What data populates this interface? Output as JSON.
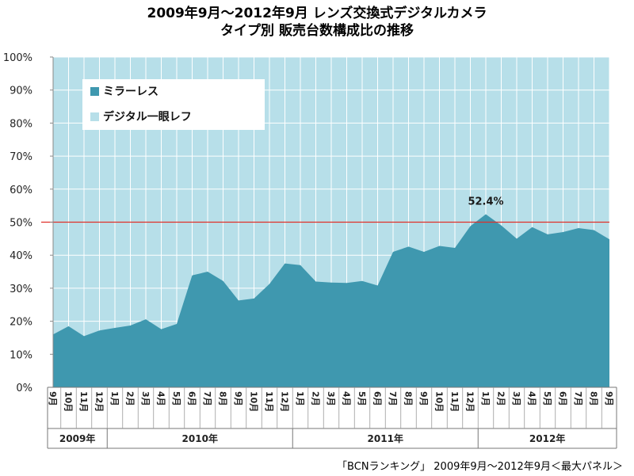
{
  "title_line1": "2009年9月～2012年9月 レンズ交換式デジタルカメラ",
  "title_line2": "タイプ別 販売台数構成比の推移",
  "source_note": "「BCNランキング」 2009年9月～2012年9月＜最大パネル＞",
  "colors": {
    "background": "#b7dfe9",
    "mirrorless": "#3f98af",
    "reference_line": "#e0302a",
    "grid": "#ffffff"
  },
  "chart_data": {
    "type": "area",
    "stacked": true,
    "percent": true,
    "ylim": [
      0,
      100
    ],
    "y_ticks": [
      "0%",
      "10%",
      "20%",
      "30%",
      "40%",
      "50%",
      "60%",
      "70%",
      "80%",
      "90%",
      "100%"
    ],
    "categories": [
      "9月",
      "10月",
      "11月",
      "12月",
      "1月",
      "2月",
      "3月",
      "4月",
      "5月",
      "6月",
      "7月",
      "8月",
      "9月",
      "10月",
      "11月",
      "12月",
      "1月",
      "2月",
      "3月",
      "4月",
      "5月",
      "6月",
      "7月",
      "8月",
      "9月",
      "10月",
      "11月",
      "12月",
      "1月",
      "2月",
      "3月",
      "4月",
      "5月",
      "6月",
      "7月",
      "8月",
      "9月"
    ],
    "year_groups": [
      {
        "label": "2009年",
        "start": 0,
        "end": 3
      },
      {
        "label": "2010年",
        "start": 4,
        "end": 15
      },
      {
        "label": "2011年",
        "start": 16,
        "end": 27
      },
      {
        "label": "2012年",
        "start": 28,
        "end": 36
      }
    ],
    "series": [
      {
        "name": "ミラーレス",
        "color": "#3f98af",
        "values": [
          16.0,
          18.5,
          15.5,
          17.2,
          18.0,
          18.7,
          20.6,
          17.6,
          19.2,
          33.9,
          35.0,
          32.2,
          26.3,
          26.9,
          31.3,
          37.5,
          37.0,
          32.0,
          31.7,
          31.6,
          32.2,
          30.8,
          41.0,
          42.6,
          41.0,
          42.8,
          42.2,
          48.8,
          52.4,
          49.0,
          45.0,
          48.5,
          46.3,
          47.0,
          48.2,
          47.6,
          44.8
        ]
      },
      {
        "name": "デジタル一眼レフ",
        "color": "#b7dfe9"
      }
    ],
    "reference_line": 50,
    "annotation": {
      "label": "52.4%",
      "index": 28
    }
  }
}
